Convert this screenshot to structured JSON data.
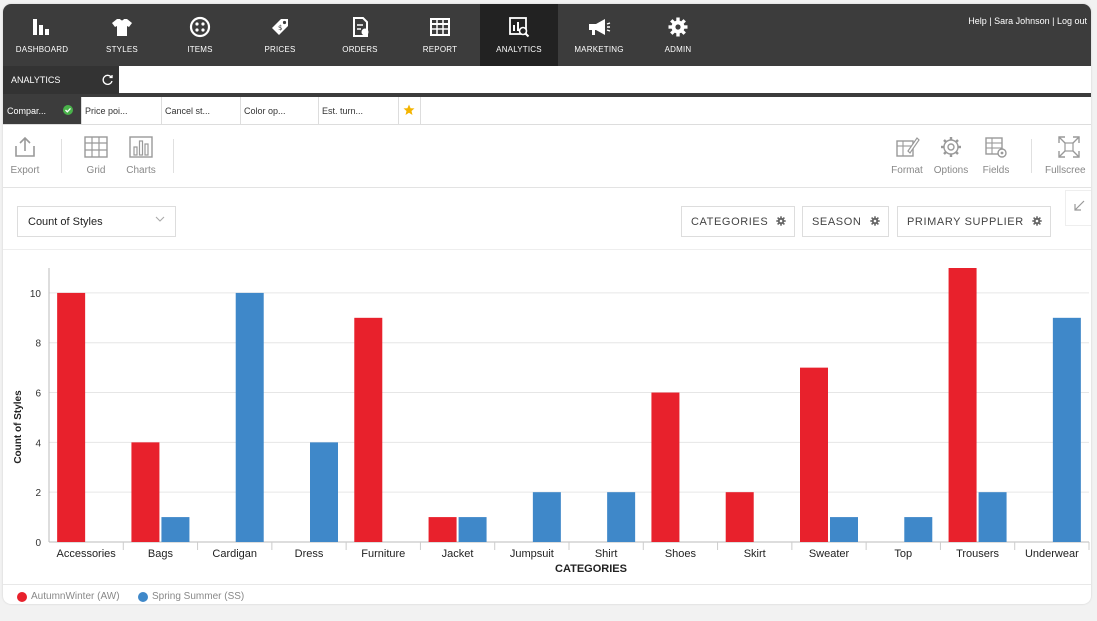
{
  "nav": {
    "items": [
      {
        "label": "DASHBOARD",
        "icon": "dashboard-icon"
      },
      {
        "label": "STYLES",
        "icon": "shirt-icon"
      },
      {
        "label": "ITEMS",
        "icon": "button-icon"
      },
      {
        "label": "PRICES",
        "icon": "price-tag-icon"
      },
      {
        "label": "ORDERS",
        "icon": "orders-icon"
      },
      {
        "label": "REPORT",
        "icon": "report-table-icon"
      },
      {
        "label": "ANALYTICS",
        "icon": "analytics-icon"
      },
      {
        "label": "MARKETING",
        "icon": "megaphone-icon"
      },
      {
        "label": "ADMIN",
        "icon": "gear-icon"
      }
    ],
    "active": "ANALYTICS",
    "user_links": "Help | Sara Johnson | Log out"
  },
  "subbar": {
    "tab_label": "ANALYTICS"
  },
  "report_tabs": [
    {
      "label": "Compar..."
    },
    {
      "label": "Price poi..."
    },
    {
      "label": "Cancel st..."
    },
    {
      "label": "Color op..."
    },
    {
      "label": "Est. turn..."
    }
  ],
  "toolbar": {
    "export": "Export",
    "grid": "Grid",
    "charts": "Charts",
    "format": "Format",
    "options": "Options",
    "fields": "Fields",
    "fullscreen": "Fullscree"
  },
  "controls": {
    "measure": "Count of Styles",
    "filters": [
      "CATEGORIES",
      "SEASON",
      "PRIMARY SUPPLIER"
    ]
  },
  "colors": {
    "aw": "#e8212c",
    "ss": "#3f88c9",
    "nav": "#3c3c3c"
  },
  "chart_data": {
    "type": "bar",
    "xlabel": "CATEGORIES",
    "ylabel": "Count of Styles",
    "ylim": [
      0,
      11
    ],
    "yticks": [
      0,
      2,
      4,
      6,
      8,
      10
    ],
    "grid": true,
    "legend_position": "bottom-left",
    "categories": [
      "Accessories",
      "Bags",
      "Cardigan",
      "Dress",
      "Furniture",
      "Jacket",
      "Jumpsuit",
      "Shirt",
      "Shoes",
      "Skirt",
      "Sweater",
      "Top",
      "Trousers",
      "Underwear"
    ],
    "series": [
      {
        "name": "AutumnWinter (AW)",
        "color": "#e8212c",
        "values": [
          10,
          4,
          0,
          0,
          9,
          1,
          0,
          0,
          6,
          2,
          7,
          0,
          11,
          0
        ]
      },
      {
        "name": "Spring Summer (SS)",
        "color": "#3f88c9",
        "values": [
          0,
          1,
          10,
          4,
          0,
          1,
          2,
          2,
          0,
          0,
          1,
          1,
          2,
          9
        ]
      }
    ]
  }
}
